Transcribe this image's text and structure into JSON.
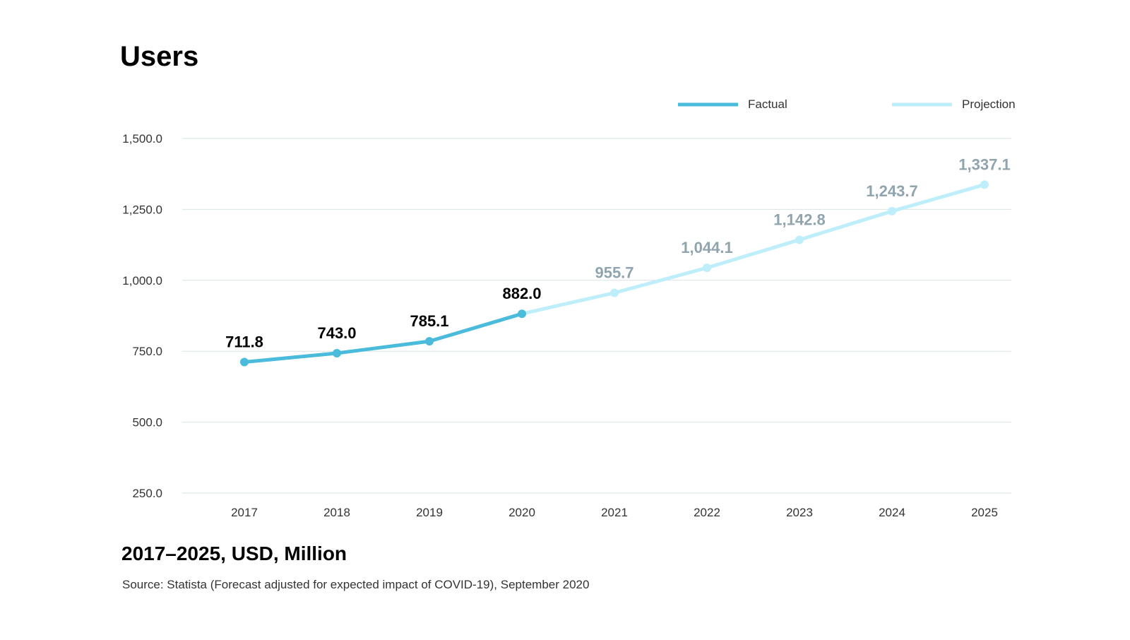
{
  "chart_data": {
    "type": "line",
    "title": "Users",
    "subtitle": "2017–2025, USD, Million",
    "source": "Source: Statista (Forecast adjusted for expected impact of COVID-19), September 2020",
    "categories": [
      "2017",
      "2018",
      "2019",
      "2020",
      "2021",
      "2022",
      "2023",
      "2024",
      "2025"
    ],
    "values": [
      711.8,
      743.0,
      785.1,
      882.0,
      955.7,
      1044.1,
      1142.8,
      1243.7,
      1337.1
    ],
    "value_labels": [
      "711.8",
      "743.0",
      "785.1",
      "882.0",
      "955.7",
      "1,044.1",
      "1,142.8",
      "1,243.7",
      "1,337.1"
    ],
    "factual_last_index": 3,
    "series": [
      {
        "name": "Factual",
        "color": "#4bbbdc",
        "label_color": "#000000"
      },
      {
        "name": "Projection",
        "color": "#bfeefb",
        "label_color": "#8fa4ad"
      }
    ],
    "ylim": [
      250,
      1500
    ],
    "y_ticks": [
      250,
      500,
      750,
      1000,
      1250,
      1500
    ],
    "y_tick_labels": [
      "250.0",
      "500.0",
      "750.0",
      "1,000.0",
      "1,250.0",
      "1,500.0"
    ],
    "legend": [
      "Factual",
      "Projection"
    ],
    "legend_position": "top-right",
    "grid": true,
    "xlabel": "",
    "ylabel": ""
  }
}
